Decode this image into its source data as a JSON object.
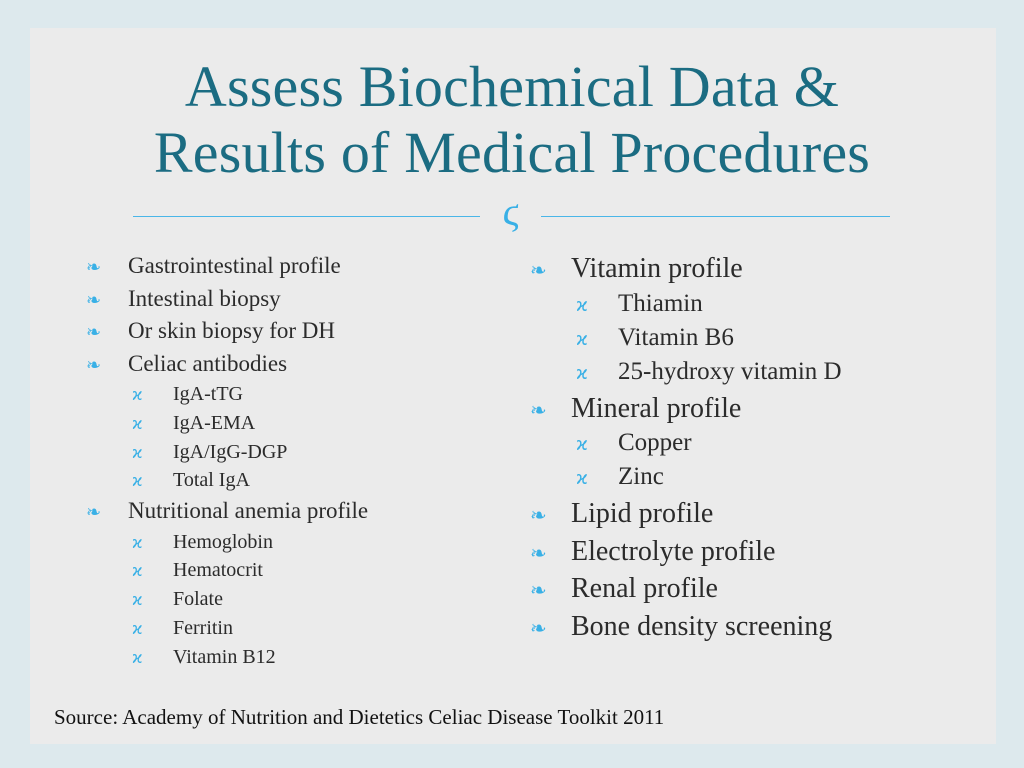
{
  "title": {
    "line1": "Assess Biochemical Data &",
    "line2": "Results of Medical Procedures"
  },
  "bullet_glyph": "ϊ",
  "colors": {
    "title": "#1b6c82",
    "accent": "#39b0e6",
    "slide_bg": "#ebebeb",
    "frame_bg": "#dde9ed"
  },
  "left_list": [
    {
      "level": 1,
      "text": "Gastrointestinal profile"
    },
    {
      "level": 1,
      "text": "Intestinal biopsy"
    },
    {
      "level": 1,
      "text": "Or skin biopsy for DH"
    },
    {
      "level": 1,
      "text": "Celiac antibodies"
    },
    {
      "level": 2,
      "text": "IgA-tTG"
    },
    {
      "level": 2,
      "text": "IgA-EMA"
    },
    {
      "level": 2,
      "text": "IgA/IgG-DGP"
    },
    {
      "level": 2,
      "text": "Total IgA"
    },
    {
      "level": 1,
      "text": "Nutritional anemia profile"
    },
    {
      "level": 2,
      "text": "Hemoglobin"
    },
    {
      "level": 2,
      "text": "Hematocrit"
    },
    {
      "level": 2,
      "text": "Folate"
    },
    {
      "level": 2,
      "text": "Ferritin"
    },
    {
      "level": 2,
      "text": "Vitamin B12"
    }
  ],
  "right_list": [
    {
      "level": 1,
      "text": "Vitamin profile"
    },
    {
      "level": 2,
      "text": "Thiamin"
    },
    {
      "level": 2,
      "text": "Vitamin B6"
    },
    {
      "level": 2,
      "text": "25-hydroxy vitamin D"
    },
    {
      "level": 1,
      "text": "Mineral profile"
    },
    {
      "level": 2,
      "text": "Copper"
    },
    {
      "level": 2,
      "text": "Zinc"
    },
    {
      "level": 1,
      "text": "Lipid profile"
    },
    {
      "level": 1,
      "text": "Electrolyte profile"
    },
    {
      "level": 1,
      "text": "Renal profile"
    },
    {
      "level": 1,
      "text": "Bone density screening"
    }
  ],
  "source": "Source:  Academy of Nutrition and Dietetics Celiac Disease Toolkit  2011"
}
